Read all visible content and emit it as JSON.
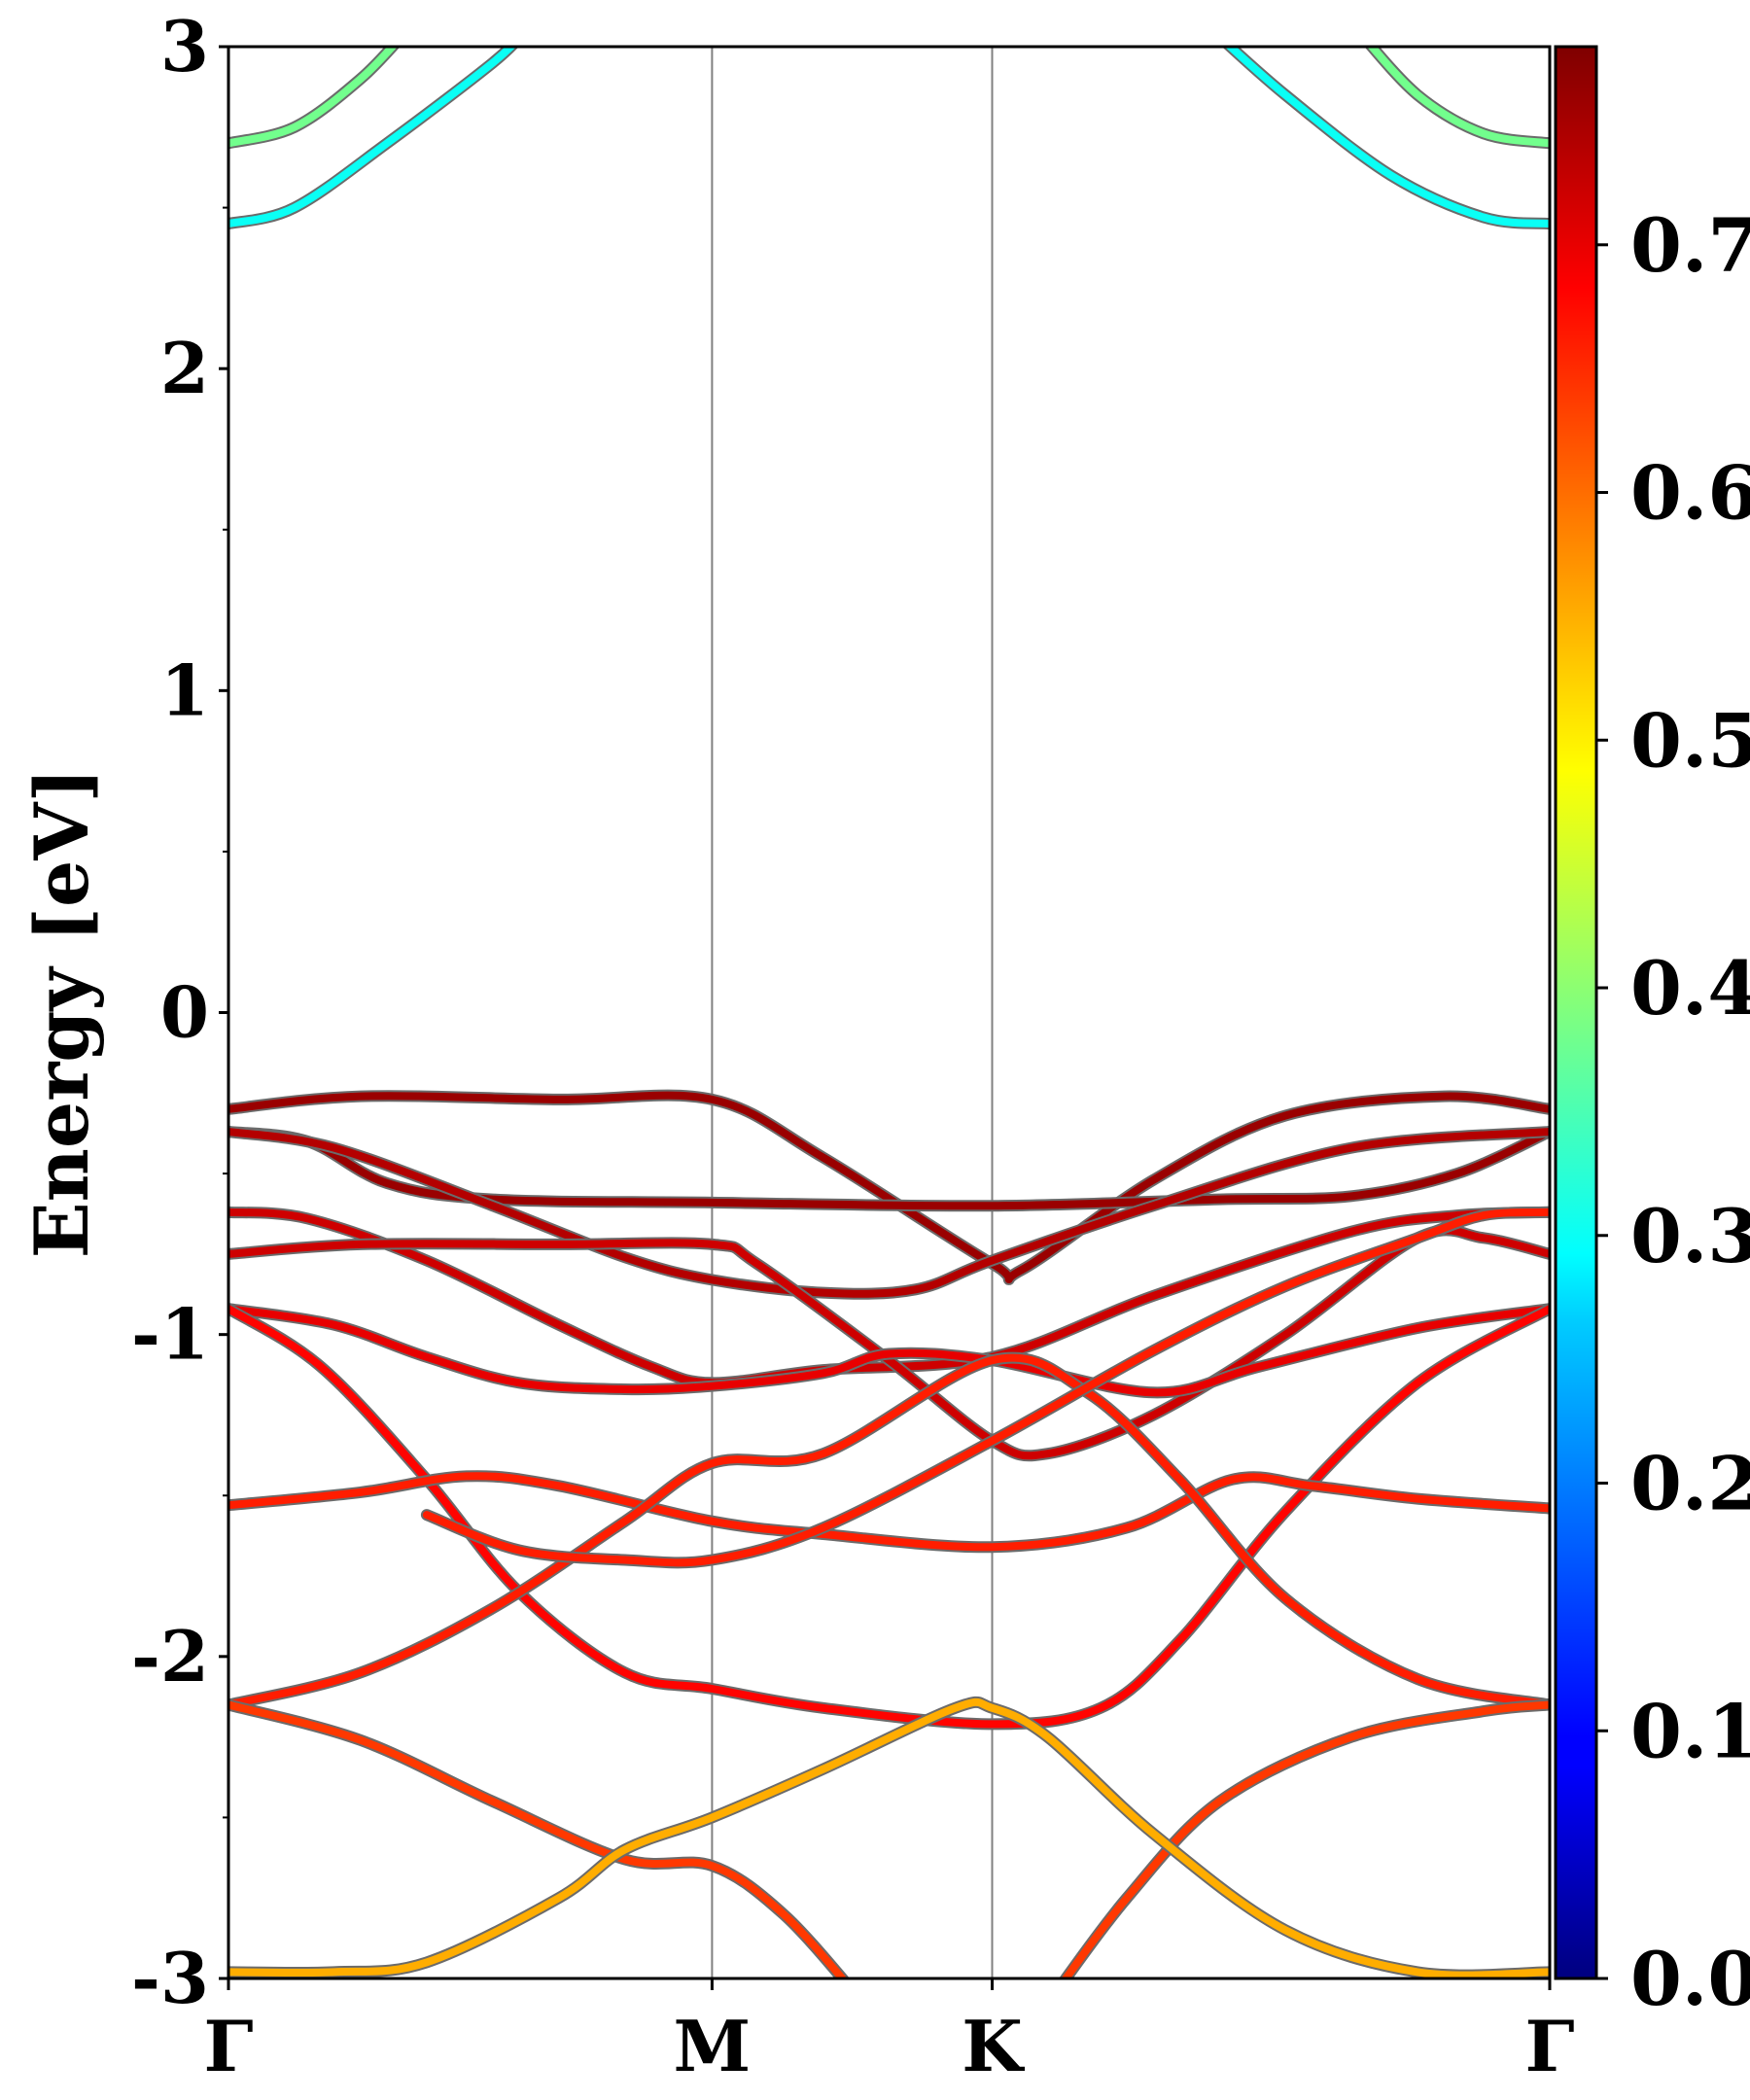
{
  "chart_data": {
    "type": "line",
    "title": "",
    "xlabel": "",
    "ylabel": "Energy [eV]",
    "ylim": [
      -3,
      3
    ],
    "xlim": [
      0,
      1
    ],
    "y_ticks": [
      {
        "value": 3,
        "label": "3"
      },
      {
        "value": 2,
        "label": "2"
      },
      {
        "value": 1,
        "label": "1"
      },
      {
        "value": 0,
        "label": "0"
      },
      {
        "value": -1,
        "label": "-1"
      },
      {
        "value": -2,
        "label": "-2"
      },
      {
        "value": -3,
        "label": "-3"
      }
    ],
    "x_ticks": [
      {
        "value": 0,
        "label": "Γ"
      },
      {
        "value": 0.366,
        "label": "M"
      },
      {
        "value": 0.578,
        "label": "K"
      },
      {
        "value": 1,
        "label": "Γ"
      }
    ],
    "high_symmetry_lines": [
      0.366,
      0.578
    ],
    "colorbar": {
      "colormap": "jet",
      "range": [
        0,
        0.78
      ],
      "ticks": [
        {
          "value": 0.0,
          "label": "0.0"
        },
        {
          "value": 0.1,
          "label": "0.1"
        },
        {
          "value": 0.2,
          "label": "0.2"
        },
        {
          "value": 0.3,
          "label": "0.3"
        },
        {
          "value": 0.4,
          "label": "0.4"
        },
        {
          "value": 0.5,
          "label": "0.5"
        },
        {
          "value": 0.6,
          "label": "0.6"
        },
        {
          "value": 0.7,
          "label": "0.7"
        }
      ]
    },
    "bands": [
      {
        "weight": 0.38,
        "points": [
          [
            0,
            2.7
          ],
          [
            0.05,
            2.75
          ],
          [
            0.1,
            2.9
          ],
          [
            0.135,
            3.05
          ]
        ]
      },
      {
        "weight": 0.3,
        "points": [
          [
            0,
            2.45
          ],
          [
            0.05,
            2.5
          ],
          [
            0.12,
            2.7
          ],
          [
            0.2,
            2.95
          ],
          [
            0.225,
            3.05
          ]
        ]
      },
      {
        "weight": 0.38,
        "points": [
          [
            0.855,
            3.05
          ],
          [
            0.9,
            2.85
          ],
          [
            0.95,
            2.73
          ],
          [
            1,
            2.7
          ]
        ]
      },
      {
        "weight": 0.3,
        "points": [
          [
            0.745,
            3.05
          ],
          [
            0.8,
            2.85
          ],
          [
            0.88,
            2.6
          ],
          [
            0.95,
            2.47
          ],
          [
            1,
            2.45
          ]
        ]
      },
      {
        "weight": 0.76,
        "points": [
          [
            0,
            -0.3
          ],
          [
            0.1,
            -0.26
          ],
          [
            0.25,
            -0.27
          ],
          [
            0.366,
            -0.27
          ],
          [
            0.45,
            -0.45
          ],
          [
            0.578,
            -0.78
          ],
          [
            0.6,
            -0.8
          ],
          [
            0.7,
            -0.52
          ],
          [
            0.8,
            -0.32
          ],
          [
            0.92,
            -0.26
          ],
          [
            1,
            -0.3
          ]
        ]
      },
      {
        "weight": 0.76,
        "points": [
          [
            0,
            -0.37
          ],
          [
            0.06,
            -0.4
          ],
          [
            0.12,
            -0.53
          ],
          [
            0.2,
            -0.58
          ],
          [
            0.366,
            -0.59
          ],
          [
            0.578,
            -0.6
          ],
          [
            0.75,
            -0.58
          ],
          [
            0.85,
            -0.57
          ],
          [
            0.93,
            -0.5
          ],
          [
            1,
            -0.37
          ]
        ]
      },
      {
        "weight": 0.74,
        "points": [
          [
            0,
            -0.37
          ],
          [
            0.08,
            -0.42
          ],
          [
            0.2,
            -0.6
          ],
          [
            0.3,
            -0.76
          ],
          [
            0.366,
            -0.83
          ],
          [
            0.45,
            -0.87
          ],
          [
            0.52,
            -0.86
          ],
          [
            0.578,
            -0.77
          ],
          [
            0.7,
            -0.6
          ],
          [
            0.85,
            -0.42
          ],
          [
            1,
            -0.37
          ]
        ]
      },
      {
        "weight": 0.72,
        "points": [
          [
            0,
            -0.62
          ],
          [
            0.06,
            -0.64
          ],
          [
            0.15,
            -0.77
          ],
          [
            0.25,
            -0.97
          ],
          [
            0.32,
            -1.1
          ],
          [
            0.366,
            -1.15
          ],
          [
            0.45,
            -1.11
          ],
          [
            0.578,
            -1.07
          ],
          [
            0.7,
            -0.88
          ],
          [
            0.85,
            -0.68
          ],
          [
            0.93,
            -0.63
          ],
          [
            1,
            -0.62
          ]
        ]
      },
      {
        "weight": 0.72,
        "points": [
          [
            0,
            -0.75
          ],
          [
            0.1,
            -0.72
          ],
          [
            0.25,
            -0.72
          ],
          [
            0.366,
            -0.72
          ],
          [
            0.4,
            -0.78
          ],
          [
            0.5,
            -1.08
          ],
          [
            0.578,
            -1.33
          ],
          [
            0.62,
            -1.37
          ],
          [
            0.7,
            -1.25
          ],
          [
            0.8,
            -1.0
          ],
          [
            0.9,
            -0.7
          ],
          [
            0.95,
            -0.7
          ],
          [
            1,
            -0.75
          ]
        ]
      },
      {
        "weight": 0.7,
        "points": [
          [
            0,
            -0.92
          ],
          [
            0.08,
            -0.97
          ],
          [
            0.15,
            -1.07
          ],
          [
            0.22,
            -1.15
          ],
          [
            0.3,
            -1.17
          ],
          [
            0.366,
            -1.16
          ],
          [
            0.45,
            -1.12
          ],
          [
            0.5,
            -1.06
          ],
          [
            0.578,
            -1.08
          ],
          [
            0.7,
            -1.18
          ],
          [
            0.78,
            -1.1
          ],
          [
            0.9,
            -0.98
          ],
          [
            1,
            -0.92
          ]
        ]
      },
      {
        "weight": 0.68,
        "points": [
          [
            0,
            -0.92
          ],
          [
            0.07,
            -1.1
          ],
          [
            0.15,
            -1.45
          ],
          [
            0.22,
            -1.8
          ],
          [
            0.3,
            -2.05
          ],
          [
            0.366,
            -2.1
          ],
          [
            0.45,
            -2.16
          ],
          [
            0.578,
            -2.21
          ],
          [
            0.66,
            -2.16
          ],
          [
            0.72,
            -1.95
          ],
          [
            0.8,
            -1.55
          ],
          [
            0.9,
            -1.15
          ],
          [
            1,
            -0.92
          ]
        ]
      },
      {
        "weight": 0.66,
        "points": [
          [
            0,
            -1.53
          ],
          [
            0.1,
            -1.49
          ],
          [
            0.18,
            -1.44
          ],
          [
            0.25,
            -1.47
          ],
          [
            0.366,
            -1.58
          ],
          [
            0.45,
            -1.62
          ],
          [
            0.578,
            -1.66
          ],
          [
            0.68,
            -1.6
          ],
          [
            0.76,
            -1.45
          ],
          [
            0.82,
            -1.47
          ],
          [
            0.9,
            -1.51
          ],
          [
            1,
            -1.54
          ]
        ]
      },
      {
        "weight": 0.66,
        "points": [
          [
            0,
            -2.15
          ],
          [
            0.1,
            -2.05
          ],
          [
            0.2,
            -1.85
          ],
          [
            0.3,
            -1.58
          ],
          [
            0.366,
            -1.4
          ],
          [
            0.45,
            -1.37
          ],
          [
            0.578,
            -1.08
          ],
          [
            0.65,
            -1.18
          ],
          [
            0.72,
            -1.45
          ],
          [
            0.8,
            -1.82
          ],
          [
            0.9,
            -2.07
          ],
          [
            1,
            -2.15
          ]
        ]
      },
      {
        "weight": 0.64,
        "points": [
          [
            0,
            -2.15
          ],
          [
            0.1,
            -2.26
          ],
          [
            0.2,
            -2.45
          ],
          [
            0.3,
            -2.63
          ],
          [
            0.366,
            -2.65
          ],
          [
            0.42,
            -2.8
          ],
          [
            0.475,
            -3.05
          ]
        ]
      },
      {
        "weight": 0.64,
        "points": [
          [
            0.625,
            -3.05
          ],
          [
            0.68,
            -2.75
          ],
          [
            0.75,
            -2.45
          ],
          [
            0.85,
            -2.25
          ],
          [
            0.95,
            -2.17
          ],
          [
            1,
            -2.15
          ]
        ]
      },
      {
        "weight": 0.66,
        "points": [
          [
            0.15,
            -1.56
          ],
          [
            0.22,
            -1.67
          ],
          [
            0.3,
            -1.7
          ],
          [
            0.366,
            -1.7
          ],
          [
            0.45,
            -1.6
          ],
          [
            0.578,
            -1.33
          ],
          [
            0.7,
            -1.05
          ],
          [
            0.8,
            -0.85
          ],
          [
            0.9,
            -0.7
          ],
          [
            0.95,
            -0.63
          ],
          [
            1,
            -0.62
          ]
        ]
      },
      {
        "weight": 0.55,
        "points": [
          [
            0,
            -2.98
          ],
          [
            0.08,
            -2.98
          ],
          [
            0.15,
            -2.95
          ],
          [
            0.25,
            -2.75
          ],
          [
            0.3,
            -2.6
          ],
          [
            0.366,
            -2.5
          ],
          [
            0.45,
            -2.35
          ],
          [
            0.55,
            -2.16
          ],
          [
            0.578,
            -2.16
          ],
          [
            0.62,
            -2.25
          ],
          [
            0.7,
            -2.55
          ],
          [
            0.8,
            -2.85
          ],
          [
            0.9,
            -2.98
          ],
          [
            1,
            -2.98
          ]
        ]
      }
    ]
  }
}
